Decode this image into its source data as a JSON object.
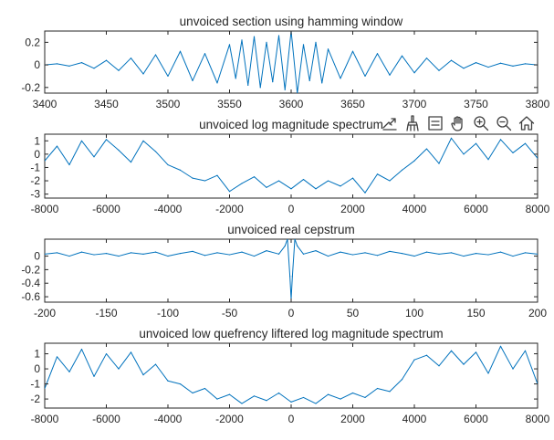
{
  "colors": {
    "trace": "#0072BD",
    "axes": "#262626"
  },
  "toolbar": {
    "icons": [
      "export-icon",
      "brush-icon",
      "datatip-icon",
      "pan-icon",
      "zoom-in-icon",
      "zoom-out-icon",
      "home-icon"
    ]
  },
  "chart_data": [
    {
      "type": "line",
      "title": "unvoiced section using hamming window",
      "xlim": [
        3400,
        3800
      ],
      "ylim": [
        -0.25,
        0.3
      ],
      "xticks": [
        3400,
        3450,
        3500,
        3550,
        3600,
        3650,
        3700,
        3750,
        3800
      ],
      "yticks": [
        -0.2,
        0,
        0.2
      ],
      "series": [
        {
          "x": [
            3400,
            3410,
            3420,
            3430,
            3440,
            3450,
            3460,
            3470,
            3480,
            3490,
            3500,
            3510,
            3520,
            3530,
            3540,
            3550,
            3555,
            3560,
            3565,
            3570,
            3575,
            3580,
            3585,
            3590,
            3595,
            3600,
            3605,
            3610,
            3615,
            3620,
            3625,
            3630,
            3640,
            3650,
            3660,
            3670,
            3680,
            3690,
            3700,
            3710,
            3720,
            3730,
            3740,
            3750,
            3760,
            3770,
            3780,
            3790,
            3800
          ],
          "y": [
            0.0,
            0.01,
            -0.01,
            0.02,
            -0.03,
            0.04,
            -0.05,
            0.06,
            -0.08,
            0.09,
            -0.1,
            0.12,
            -0.14,
            0.1,
            -0.16,
            0.18,
            -0.12,
            0.22,
            -0.18,
            0.25,
            -0.2,
            0.2,
            -0.15,
            0.26,
            -0.22,
            0.3,
            -0.25,
            0.18,
            -0.14,
            0.2,
            -0.16,
            0.14,
            -0.12,
            0.12,
            -0.1,
            0.1,
            -0.09,
            0.08,
            -0.07,
            0.06,
            -0.05,
            0.04,
            -0.03,
            0.02,
            -0.02,
            0.015,
            -0.01,
            0.01,
            0.0
          ]
        }
      ]
    },
    {
      "type": "line",
      "title": "unvoiced log magnitude spectrum",
      "xlim": [
        -8000,
        8000
      ],
      "ylim": [
        -3.3,
        1.5
      ],
      "xticks": [
        -8000,
        -6000,
        -4000,
        -2000,
        0,
        2000,
        4000,
        6000,
        8000
      ],
      "yticks": [
        -3,
        -2,
        -1,
        0,
        1
      ],
      "series": [
        {
          "x": [
            -8000,
            -7600,
            -7200,
            -6800,
            -6400,
            -6000,
            -5600,
            -5200,
            -4800,
            -4400,
            -4000,
            -3600,
            -3200,
            -2800,
            -2400,
            -2000,
            -1600,
            -1200,
            -800,
            -400,
            0,
            400,
            800,
            1200,
            1600,
            2000,
            2400,
            2800,
            3200,
            3600,
            4000,
            4400,
            4800,
            5200,
            5600,
            6000,
            6400,
            6800,
            7200,
            7600,
            8000
          ],
          "y": [
            -0.5,
            0.6,
            -0.8,
            1.0,
            -0.2,
            1.1,
            0.3,
            -0.6,
            1.0,
            0.2,
            -0.8,
            -1.2,
            -1.8,
            -2.0,
            -1.6,
            -2.8,
            -2.2,
            -1.7,
            -2.5,
            -2.0,
            -2.6,
            -1.9,
            -2.6,
            -2.0,
            -2.4,
            -1.8,
            -2.9,
            -1.5,
            -2.0,
            -1.2,
            -0.5,
            0.4,
            -0.7,
            1.2,
            0.0,
            0.8,
            -0.4,
            1.1,
            0.1,
            0.8,
            -0.3
          ]
        }
      ]
    },
    {
      "type": "line",
      "title": "unvoiced real cepstrum",
      "xlim": [
        -200,
        200
      ],
      "ylim": [
        -0.68,
        0.25
      ],
      "xticks": [
        -200,
        -150,
        -100,
        -50,
        0,
        50,
        100,
        150,
        200
      ],
      "yticks": [
        -0.6,
        -0.4,
        -0.2,
        0
      ],
      "series": [
        {
          "x": [
            -200,
            -190,
            -180,
            -170,
            -160,
            -150,
            -140,
            -130,
            -120,
            -110,
            -100,
            -90,
            -80,
            -70,
            -60,
            -50,
            -40,
            -30,
            -20,
            -10,
            -5,
            -3,
            -1,
            0,
            1,
            3,
            5,
            10,
            20,
            30,
            40,
            50,
            60,
            70,
            80,
            90,
            100,
            110,
            120,
            130,
            140,
            150,
            160,
            170,
            180,
            190,
            200
          ],
          "y": [
            0.03,
            0.05,
            0.0,
            0.06,
            0.02,
            0.04,
            0.0,
            0.05,
            0.03,
            0.06,
            0.0,
            0.04,
            0.07,
            0.01,
            0.05,
            0.02,
            0.06,
            0.0,
            0.08,
            0.03,
            0.15,
            0.25,
            -0.3,
            -0.64,
            -0.3,
            0.25,
            0.15,
            0.03,
            0.08,
            0.0,
            0.06,
            0.02,
            0.05,
            0.01,
            0.07,
            0.04,
            0.0,
            0.06,
            0.03,
            0.05,
            0.0,
            0.04,
            0.02,
            0.06,
            0.0,
            0.05,
            0.03
          ]
        }
      ]
    },
    {
      "type": "line",
      "title": "unvoiced low quefrency liftered log magnitude spectrum",
      "xlim": [
        -8000,
        8000
      ],
      "ylim": [
        -2.6,
        1.7
      ],
      "xticks": [
        -8000,
        -6000,
        -4000,
        -2000,
        0,
        2000,
        4000,
        6000,
        8000
      ],
      "yticks": [
        -2,
        -1,
        0,
        1
      ],
      "series": [
        {
          "x": [
            -8000,
            -7600,
            -7200,
            -6800,
            -6400,
            -6000,
            -5600,
            -5200,
            -4800,
            -4400,
            -4000,
            -3600,
            -3200,
            -2800,
            -2400,
            -2000,
            -1600,
            -1200,
            -800,
            -400,
            0,
            400,
            800,
            1200,
            1600,
            2000,
            2400,
            2800,
            3200,
            3600,
            4000,
            4400,
            4800,
            5200,
            5600,
            6000,
            6400,
            6800,
            7200,
            7600,
            8000
          ],
          "y": [
            -1.3,
            0.8,
            -0.2,
            1.3,
            -0.5,
            1.0,
            0.0,
            1.1,
            -0.4,
            0.3,
            -0.8,
            -1.0,
            -1.6,
            -1.3,
            -2.0,
            -1.7,
            -2.3,
            -1.8,
            -2.1,
            -1.6,
            -2.2,
            -1.9,
            -2.3,
            -1.7,
            -2.0,
            -1.6,
            -1.9,
            -1.3,
            -1.5,
            -0.7,
            0.6,
            0.9,
            0.2,
            1.2,
            0.3,
            1.1,
            -0.3,
            1.5,
            0.0,
            1.2,
            -1.0
          ]
        }
      ]
    }
  ]
}
